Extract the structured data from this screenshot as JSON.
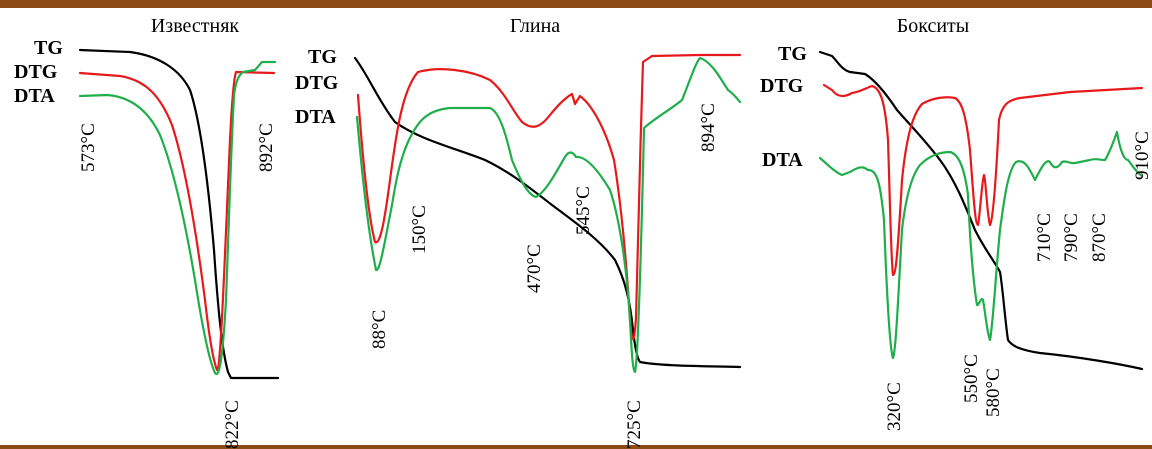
{
  "chart_data": [
    {
      "type": "line",
      "title": "Известняк",
      "series": [
        {
          "name": "TG",
          "color": "#000000"
        },
        {
          "name": "DTG",
          "color": "#e8191b"
        },
        {
          "name": "DTA",
          "color": "#1fae4a"
        }
      ],
      "annotations": [
        "573°C",
        "892°C",
        "822°C"
      ],
      "peaks_c": [
        573,
        822,
        892
      ]
    },
    {
      "type": "line",
      "title": "Глина",
      "series": [
        {
          "name": "TG",
          "color": "#000000"
        },
        {
          "name": "DTG",
          "color": "#e8191b"
        },
        {
          "name": "DTA",
          "color": "#1fae4a"
        }
      ],
      "annotations": [
        "150°C",
        "88°C",
        "470°C",
        "545°C",
        "725°C",
        "894°C"
      ],
      "peaks_c": [
        88,
        150,
        470,
        545,
        725,
        894
      ]
    },
    {
      "type": "line",
      "title": "Бокситы",
      "series": [
        {
          "name": "TG",
          "color": "#000000"
        },
        {
          "name": "DTG",
          "color": "#e8191b"
        },
        {
          "name": "DTA",
          "color": "#1fae4a"
        }
      ],
      "annotations": [
        "320°C",
        "550°C",
        "580°C",
        "710°C",
        "790°C",
        "870°C",
        "910°C"
      ],
      "peaks_c": [
        320,
        550,
        580,
        710,
        790,
        870,
        910
      ]
    }
  ]
}
